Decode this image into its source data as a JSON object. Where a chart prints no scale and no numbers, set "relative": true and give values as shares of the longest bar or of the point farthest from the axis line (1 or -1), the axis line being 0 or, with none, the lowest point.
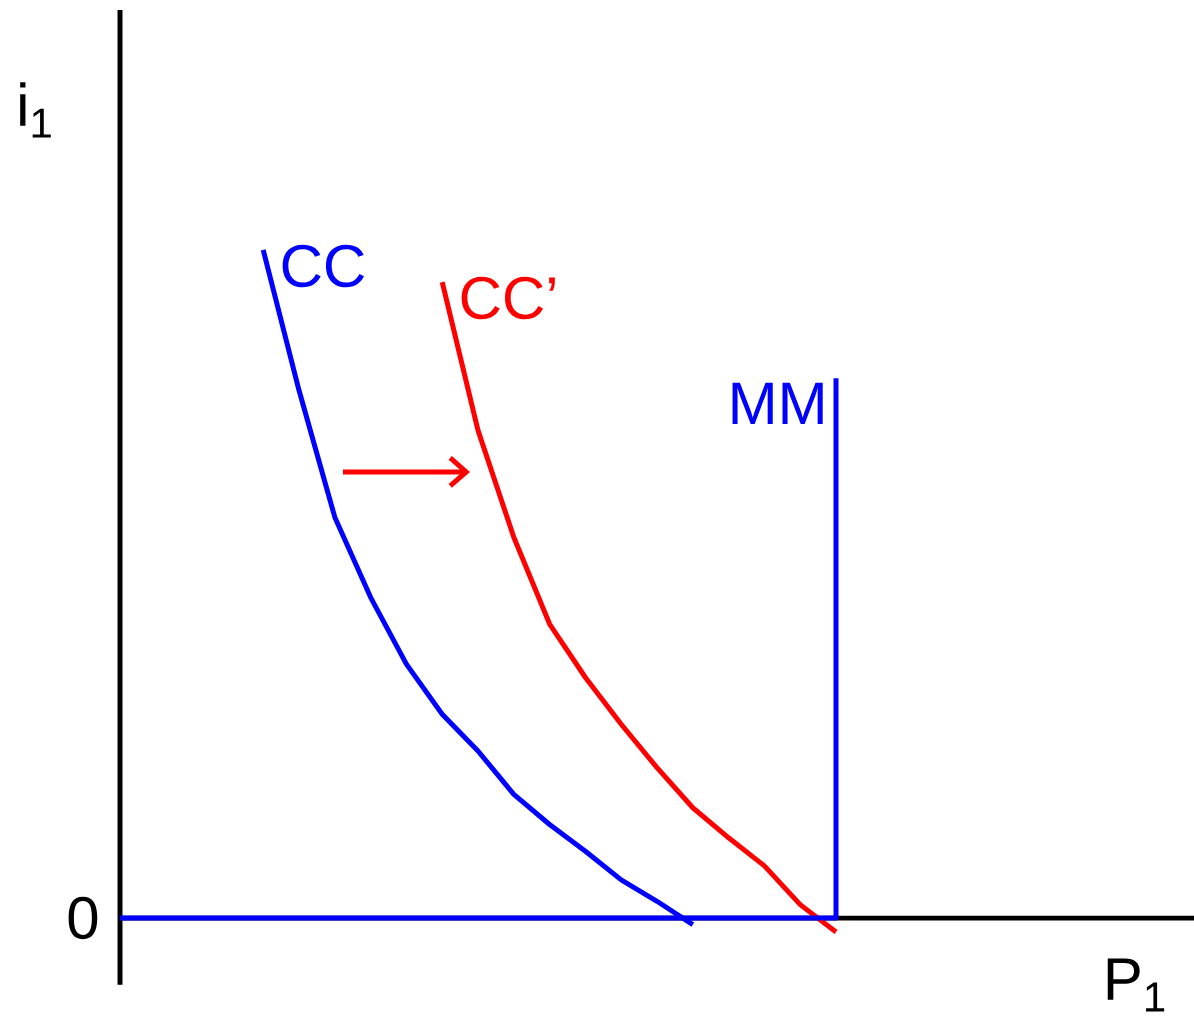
{
  "chart_data": {
    "type": "line",
    "relative": true,
    "xlabel": "P$_{1}$",
    "ylabel": "i$_{1}$",
    "annotations": [
      "0"
    ],
    "marker": "none",
    "line_style": "solid",
    "categories": [
      null,
      null,
      null,
      null,
      null,
      null,
      null,
      null,
      null,
      null,
      null,
      null,
      null,
      null,
      null,
      null,
      null,
      null,
      null,
      null,
      null,
      null,
      null,
      null,
      null,
      null,
      null,
      null,
      null,
      null,
      null
    ],
    "series": [
      {
        "name": "CC",
        "color": "#0000ff",
        "values": [
          null,
          null,
          null,
          null,
          1.0,
          0.79,
          0.6,
          0.48,
          0.38,
          0.305,
          0.25,
          0.185,
          0.14,
          0.1,
          0.057,
          0.025,
          -0.01,
          null,
          null,
          null,
          null,
          null,
          null,
          null,
          null,
          null,
          null,
          null,
          null,
          null,
          null
        ]
      },
      {
        "name": "CC’",
        "color": "#ff0000",
        "values": [
          null,
          null,
          null,
          null,
          null,
          null,
          null,
          null,
          null,
          0.952,
          0.73,
          0.57,
          0.44,
          0.36,
          0.29,
          0.225,
          0.165,
          0.12,
          0.078,
          0.02,
          -0.021,
          null,
          null,
          null,
          null,
          null,
          null,
          null,
          null,
          null,
          null
        ]
      },
      {
        "name": "MM",
        "color": "#0000ff",
        "type": "step",
        "values": [
          0,
          0,
          0,
          0,
          0,
          0,
          0,
          0,
          0,
          0,
          0,
          0,
          0,
          0,
          0,
          0,
          0,
          0,
          0,
          0,
          0.808,
          null,
          null,
          null,
          null,
          null,
          null,
          null,
          null,
          null,
          null
        ]
      }
    ]
  }
}
